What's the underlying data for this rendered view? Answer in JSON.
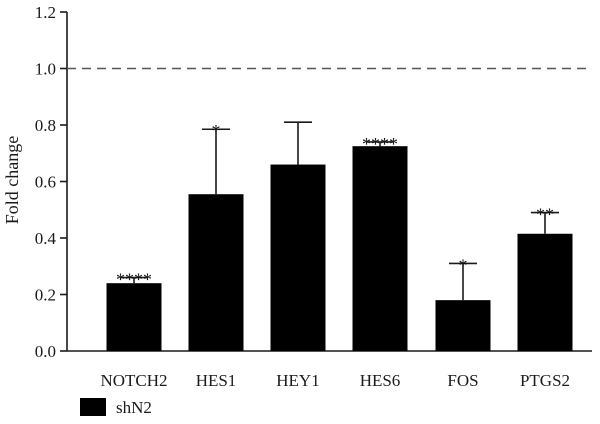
{
  "chart_data": {
    "type": "bar",
    "categories": [
      "NOTCH2",
      "HES1",
      "HEY1",
      "HES6",
      "FOS",
      "PTGS2"
    ],
    "series": [
      {
        "name": "shN2",
        "values": [
          0.24,
          0.555,
          0.66,
          0.725,
          0.18,
          0.415
        ],
        "error_upper": [
          0.02,
          0.23,
          0.15,
          0.015,
          0.13,
          0.075
        ],
        "significance": [
          "****",
          "*",
          "",
          "****",
          "*",
          "**"
        ],
        "color": "#000000"
      }
    ],
    "ylabel": "Fold change",
    "xlabel": "",
    "ylim": [
      0,
      1.2
    ],
    "yticks": [
      "0.0",
      "0.2",
      "0.4",
      "0.6",
      "0.8",
      "1.0",
      "1.2"
    ],
    "reference_line": 1.0,
    "legend_placement": "bottom-left",
    "grid": false
  }
}
